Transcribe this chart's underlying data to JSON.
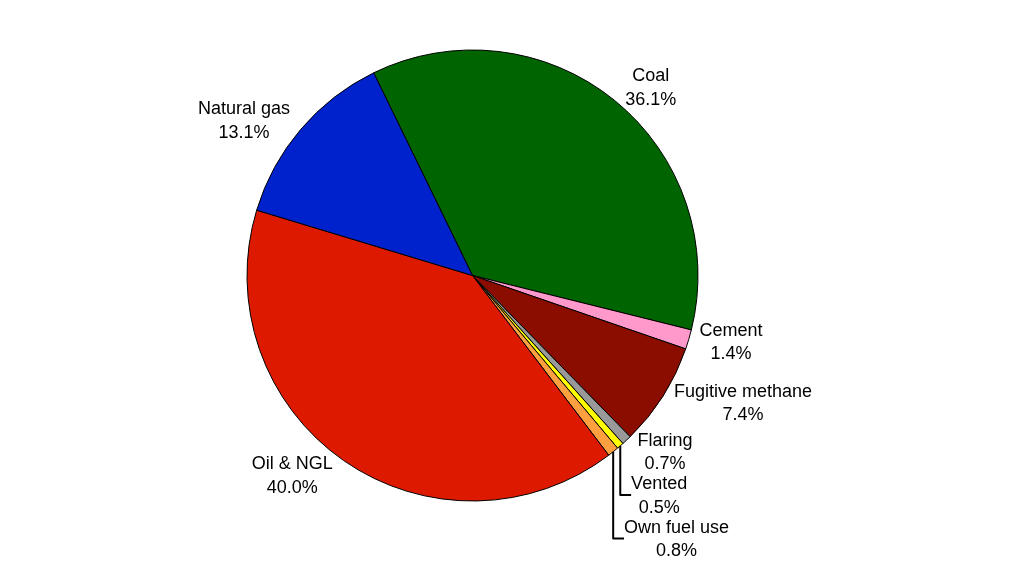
{
  "chart_data": {
    "type": "pie",
    "categories": [
      "Coal",
      "Cement",
      "Fugitive methane",
      "Flaring",
      "Vented",
      "Own fuel use",
      "Oil & NGL",
      "Natural gas"
    ],
    "values": [
      36.1,
      1.4,
      7.4,
      0.7,
      0.5,
      0.8,
      40.0,
      13.1
    ],
    "value_labels": [
      "36.1%",
      "1.4%",
      "7.4%",
      "0.7%",
      "0.5%",
      "0.8%",
      "40.0%",
      "13.1%"
    ],
    "colors": [
      "#006400",
      "#ff99cc",
      "#8b0d00",
      "#999999",
      "#ffff00",
      "#ffa040",
      "#dd1a00",
      "#0022cc"
    ],
    "legend": false
  }
}
